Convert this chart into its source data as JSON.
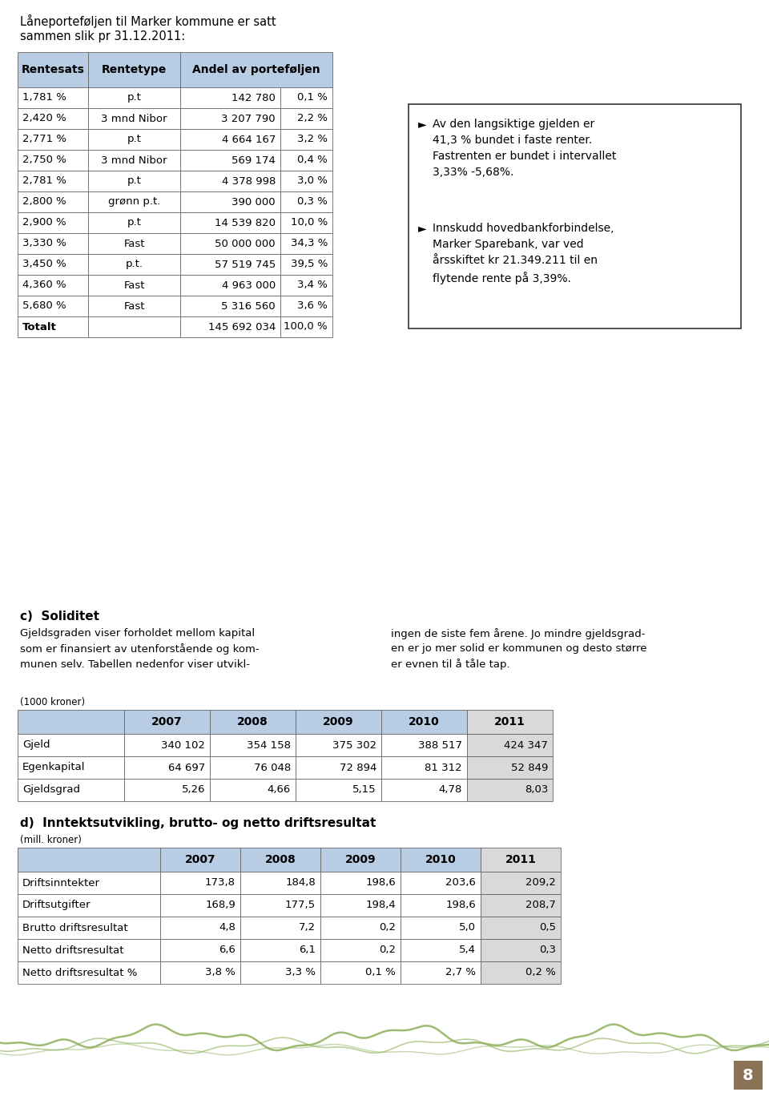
{
  "page_bg": "#ffffff",
  "intro_text_line1": "Låneporteføljen til Marker kommune er satt",
  "intro_text_line2": "sammen slik pr 31.12.2011:",
  "table1_header_bg": "#b8cce4",
  "table1_rows": [
    [
      "1,781 %",
      "p.t",
      "142 780",
      "0,1 %"
    ],
    [
      "2,420 %",
      "3 mnd Nibor",
      "3 207 790",
      "2,2 %"
    ],
    [
      "2,771 %",
      "p.t",
      "4 664 167",
      "3,2 %"
    ],
    [
      "2,750 %",
      "3 mnd Nibor",
      "569 174",
      "0,4 %"
    ],
    [
      "2,781 %",
      "p.t",
      "4 378 998",
      "3,0 %"
    ],
    [
      "2,800 %",
      "grønn p.t.",
      "390 000",
      "0,3 %"
    ],
    [
      "2,900 %",
      "p.t",
      "14 539 820",
      "10,0 %"
    ],
    [
      "3,330 %",
      "Fast",
      "50 000 000",
      "34,3 %"
    ],
    [
      "3,450 %",
      "p.t.",
      "57 519 745",
      "39,5 %"
    ],
    [
      "4,360 %",
      "Fast",
      "4 963 000",
      "3,4 %"
    ],
    [
      "5,680 %",
      "Fast",
      "5 316 560",
      "3,6 %"
    ],
    [
      "Totalt",
      "",
      "145 692 034",
      "100,0 %"
    ]
  ],
  "bullet1": "Av den langsiktige gjelden er\n41,3 % bundet i faste renter.\nFastrenten er bundet i intervallet\n3,33% -5,68%.",
  "bullet2": "Innskudd hovedbankforbindelse,\nMarker Sparebank, var ved\nårsskiftet kr 21.349.211 til en\nflytende rente på 3,39%.",
  "section_c_title": "c)  Soliditet",
  "section_c_left": "Gjeldsgraden viser forholdet mellom kapital\nsom er finansiert av utenforstående og kom-\nmunen selv. Tabellen nedenfor viser utvikl-",
  "section_c_right": "ingen de siste fem årene. Jo mindre gjeldsgrad-\nen er jo mer solid er kommunen og desto større\ner evnen til å tåle tap.",
  "label_1000": "(1000 kroner)",
  "table2_header": [
    "",
    "2007",
    "2008",
    "2009",
    "2010",
    "2011"
  ],
  "table2_header_bg": "#b8cce4",
  "table2_last_col_bg": "#d9d9d9",
  "table2_rows": [
    [
      "Gjeld",
      "340 102",
      "354 158",
      "375 302",
      "388 517",
      "424 347"
    ],
    [
      "Egenkapital",
      "64 697",
      "76 048",
      "72 894",
      "81 312",
      "52 849"
    ],
    [
      "Gjeldsgrad",
      "5,26",
      "4,66",
      "5,15",
      "4,78",
      "8,03"
    ]
  ],
  "section_d_title": "d)  Inntektsutvikling, brutto- og netto driftsresultat",
  "label_mill": "(mill. kroner)",
  "table3_header": [
    "",
    "2007",
    "2008",
    "2009",
    "2010",
    "2011"
  ],
  "table3_header_bg": "#b8cce4",
  "table3_last_col_bg": "#d9d9d9",
  "table3_rows": [
    [
      "Driftsinntekter",
      "173,8",
      "184,8",
      "198,6",
      "203,6",
      "209,2"
    ],
    [
      "Driftsutgifter",
      "168,9",
      "177,5",
      "198,4",
      "198,6",
      "208,7"
    ],
    [
      "Brutto driftsresultat",
      "4,8",
      "7,2",
      "0,2",
      "5,0",
      "0,5"
    ],
    [
      "Netto driftsresultat",
      "6,6",
      "6,1",
      "0,2",
      "5,4",
      "0,3"
    ],
    [
      "Netto driftsresultat %",
      "3,8 %",
      "3,3 %",
      "0,1 %",
      "2,7 %",
      "0,2 %"
    ]
  ],
  "page_number": "8",
  "page_number_bg": "#8b7355",
  "footer_wave_color": "#8db05a"
}
